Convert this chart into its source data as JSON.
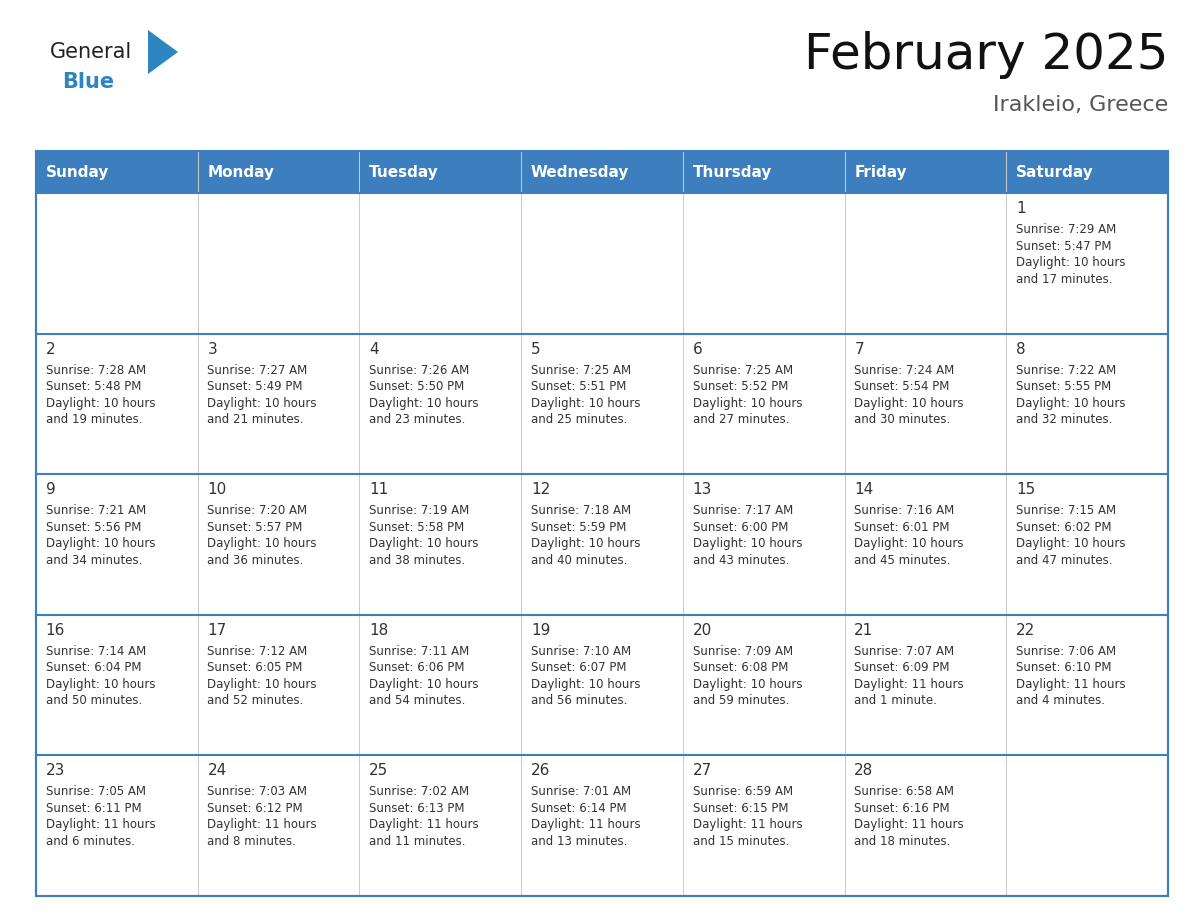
{
  "title": "February 2025",
  "subtitle": "Irakleio, Greece",
  "header_bg": "#3d7ebf",
  "header_text": "#ffffff",
  "cell_bg": "#ffffff",
  "border_color": "#3d7ebf",
  "text_color": "#333333",
  "day_names": [
    "Sunday",
    "Monday",
    "Tuesday",
    "Wednesday",
    "Thursday",
    "Friday",
    "Saturday"
  ],
  "title_fontsize": 36,
  "subtitle_fontsize": 16,
  "header_fontsize": 11,
  "day_num_fontsize": 11,
  "cell_text_fontsize": 8.5,
  "logo_general_color": "#222222",
  "logo_blue_color": "#2e86c1",
  "weeks": [
    [
      {
        "day": "",
        "sunrise": "",
        "sunset": "",
        "daylight": ""
      },
      {
        "day": "",
        "sunrise": "",
        "sunset": "",
        "daylight": ""
      },
      {
        "day": "",
        "sunrise": "",
        "sunset": "",
        "daylight": ""
      },
      {
        "day": "",
        "sunrise": "",
        "sunset": "",
        "daylight": ""
      },
      {
        "day": "",
        "sunrise": "",
        "sunset": "",
        "daylight": ""
      },
      {
        "day": "",
        "sunrise": "",
        "sunset": "",
        "daylight": ""
      },
      {
        "day": "1",
        "sunrise": "Sunrise: 7:29 AM",
        "sunset": "Sunset: 5:47 PM",
        "daylight": "Daylight: 10 hours\nand 17 minutes."
      }
    ],
    [
      {
        "day": "2",
        "sunrise": "Sunrise: 7:28 AM",
        "sunset": "Sunset: 5:48 PM",
        "daylight": "Daylight: 10 hours\nand 19 minutes."
      },
      {
        "day": "3",
        "sunrise": "Sunrise: 7:27 AM",
        "sunset": "Sunset: 5:49 PM",
        "daylight": "Daylight: 10 hours\nand 21 minutes."
      },
      {
        "day": "4",
        "sunrise": "Sunrise: 7:26 AM",
        "sunset": "Sunset: 5:50 PM",
        "daylight": "Daylight: 10 hours\nand 23 minutes."
      },
      {
        "day": "5",
        "sunrise": "Sunrise: 7:25 AM",
        "sunset": "Sunset: 5:51 PM",
        "daylight": "Daylight: 10 hours\nand 25 minutes."
      },
      {
        "day": "6",
        "sunrise": "Sunrise: 7:25 AM",
        "sunset": "Sunset: 5:52 PM",
        "daylight": "Daylight: 10 hours\nand 27 minutes."
      },
      {
        "day": "7",
        "sunrise": "Sunrise: 7:24 AM",
        "sunset": "Sunset: 5:54 PM",
        "daylight": "Daylight: 10 hours\nand 30 minutes."
      },
      {
        "day": "8",
        "sunrise": "Sunrise: 7:22 AM",
        "sunset": "Sunset: 5:55 PM",
        "daylight": "Daylight: 10 hours\nand 32 minutes."
      }
    ],
    [
      {
        "day": "9",
        "sunrise": "Sunrise: 7:21 AM",
        "sunset": "Sunset: 5:56 PM",
        "daylight": "Daylight: 10 hours\nand 34 minutes."
      },
      {
        "day": "10",
        "sunrise": "Sunrise: 7:20 AM",
        "sunset": "Sunset: 5:57 PM",
        "daylight": "Daylight: 10 hours\nand 36 minutes."
      },
      {
        "day": "11",
        "sunrise": "Sunrise: 7:19 AM",
        "sunset": "Sunset: 5:58 PM",
        "daylight": "Daylight: 10 hours\nand 38 minutes."
      },
      {
        "day": "12",
        "sunrise": "Sunrise: 7:18 AM",
        "sunset": "Sunset: 5:59 PM",
        "daylight": "Daylight: 10 hours\nand 40 minutes."
      },
      {
        "day": "13",
        "sunrise": "Sunrise: 7:17 AM",
        "sunset": "Sunset: 6:00 PM",
        "daylight": "Daylight: 10 hours\nand 43 minutes."
      },
      {
        "day": "14",
        "sunrise": "Sunrise: 7:16 AM",
        "sunset": "Sunset: 6:01 PM",
        "daylight": "Daylight: 10 hours\nand 45 minutes."
      },
      {
        "day": "15",
        "sunrise": "Sunrise: 7:15 AM",
        "sunset": "Sunset: 6:02 PM",
        "daylight": "Daylight: 10 hours\nand 47 minutes."
      }
    ],
    [
      {
        "day": "16",
        "sunrise": "Sunrise: 7:14 AM",
        "sunset": "Sunset: 6:04 PM",
        "daylight": "Daylight: 10 hours\nand 50 minutes."
      },
      {
        "day": "17",
        "sunrise": "Sunrise: 7:12 AM",
        "sunset": "Sunset: 6:05 PM",
        "daylight": "Daylight: 10 hours\nand 52 minutes."
      },
      {
        "day": "18",
        "sunrise": "Sunrise: 7:11 AM",
        "sunset": "Sunset: 6:06 PM",
        "daylight": "Daylight: 10 hours\nand 54 minutes."
      },
      {
        "day": "19",
        "sunrise": "Sunrise: 7:10 AM",
        "sunset": "Sunset: 6:07 PM",
        "daylight": "Daylight: 10 hours\nand 56 minutes."
      },
      {
        "day": "20",
        "sunrise": "Sunrise: 7:09 AM",
        "sunset": "Sunset: 6:08 PM",
        "daylight": "Daylight: 10 hours\nand 59 minutes."
      },
      {
        "day": "21",
        "sunrise": "Sunrise: 7:07 AM",
        "sunset": "Sunset: 6:09 PM",
        "daylight": "Daylight: 11 hours\nand 1 minute."
      },
      {
        "day": "22",
        "sunrise": "Sunrise: 7:06 AM",
        "sunset": "Sunset: 6:10 PM",
        "daylight": "Daylight: 11 hours\nand 4 minutes."
      }
    ],
    [
      {
        "day": "23",
        "sunrise": "Sunrise: 7:05 AM",
        "sunset": "Sunset: 6:11 PM",
        "daylight": "Daylight: 11 hours\nand 6 minutes."
      },
      {
        "day": "24",
        "sunrise": "Sunrise: 7:03 AM",
        "sunset": "Sunset: 6:12 PM",
        "daylight": "Daylight: 11 hours\nand 8 minutes."
      },
      {
        "day": "25",
        "sunrise": "Sunrise: 7:02 AM",
        "sunset": "Sunset: 6:13 PM",
        "daylight": "Daylight: 11 hours\nand 11 minutes."
      },
      {
        "day": "26",
        "sunrise": "Sunrise: 7:01 AM",
        "sunset": "Sunset: 6:14 PM",
        "daylight": "Daylight: 11 hours\nand 13 minutes."
      },
      {
        "day": "27",
        "sunrise": "Sunrise: 6:59 AM",
        "sunset": "Sunset: 6:15 PM",
        "daylight": "Daylight: 11 hours\nand 15 minutes."
      },
      {
        "day": "28",
        "sunrise": "Sunrise: 6:58 AM",
        "sunset": "Sunset: 6:16 PM",
        "daylight": "Daylight: 11 hours\nand 18 minutes."
      },
      {
        "day": "",
        "sunrise": "",
        "sunset": "",
        "daylight": ""
      }
    ]
  ]
}
